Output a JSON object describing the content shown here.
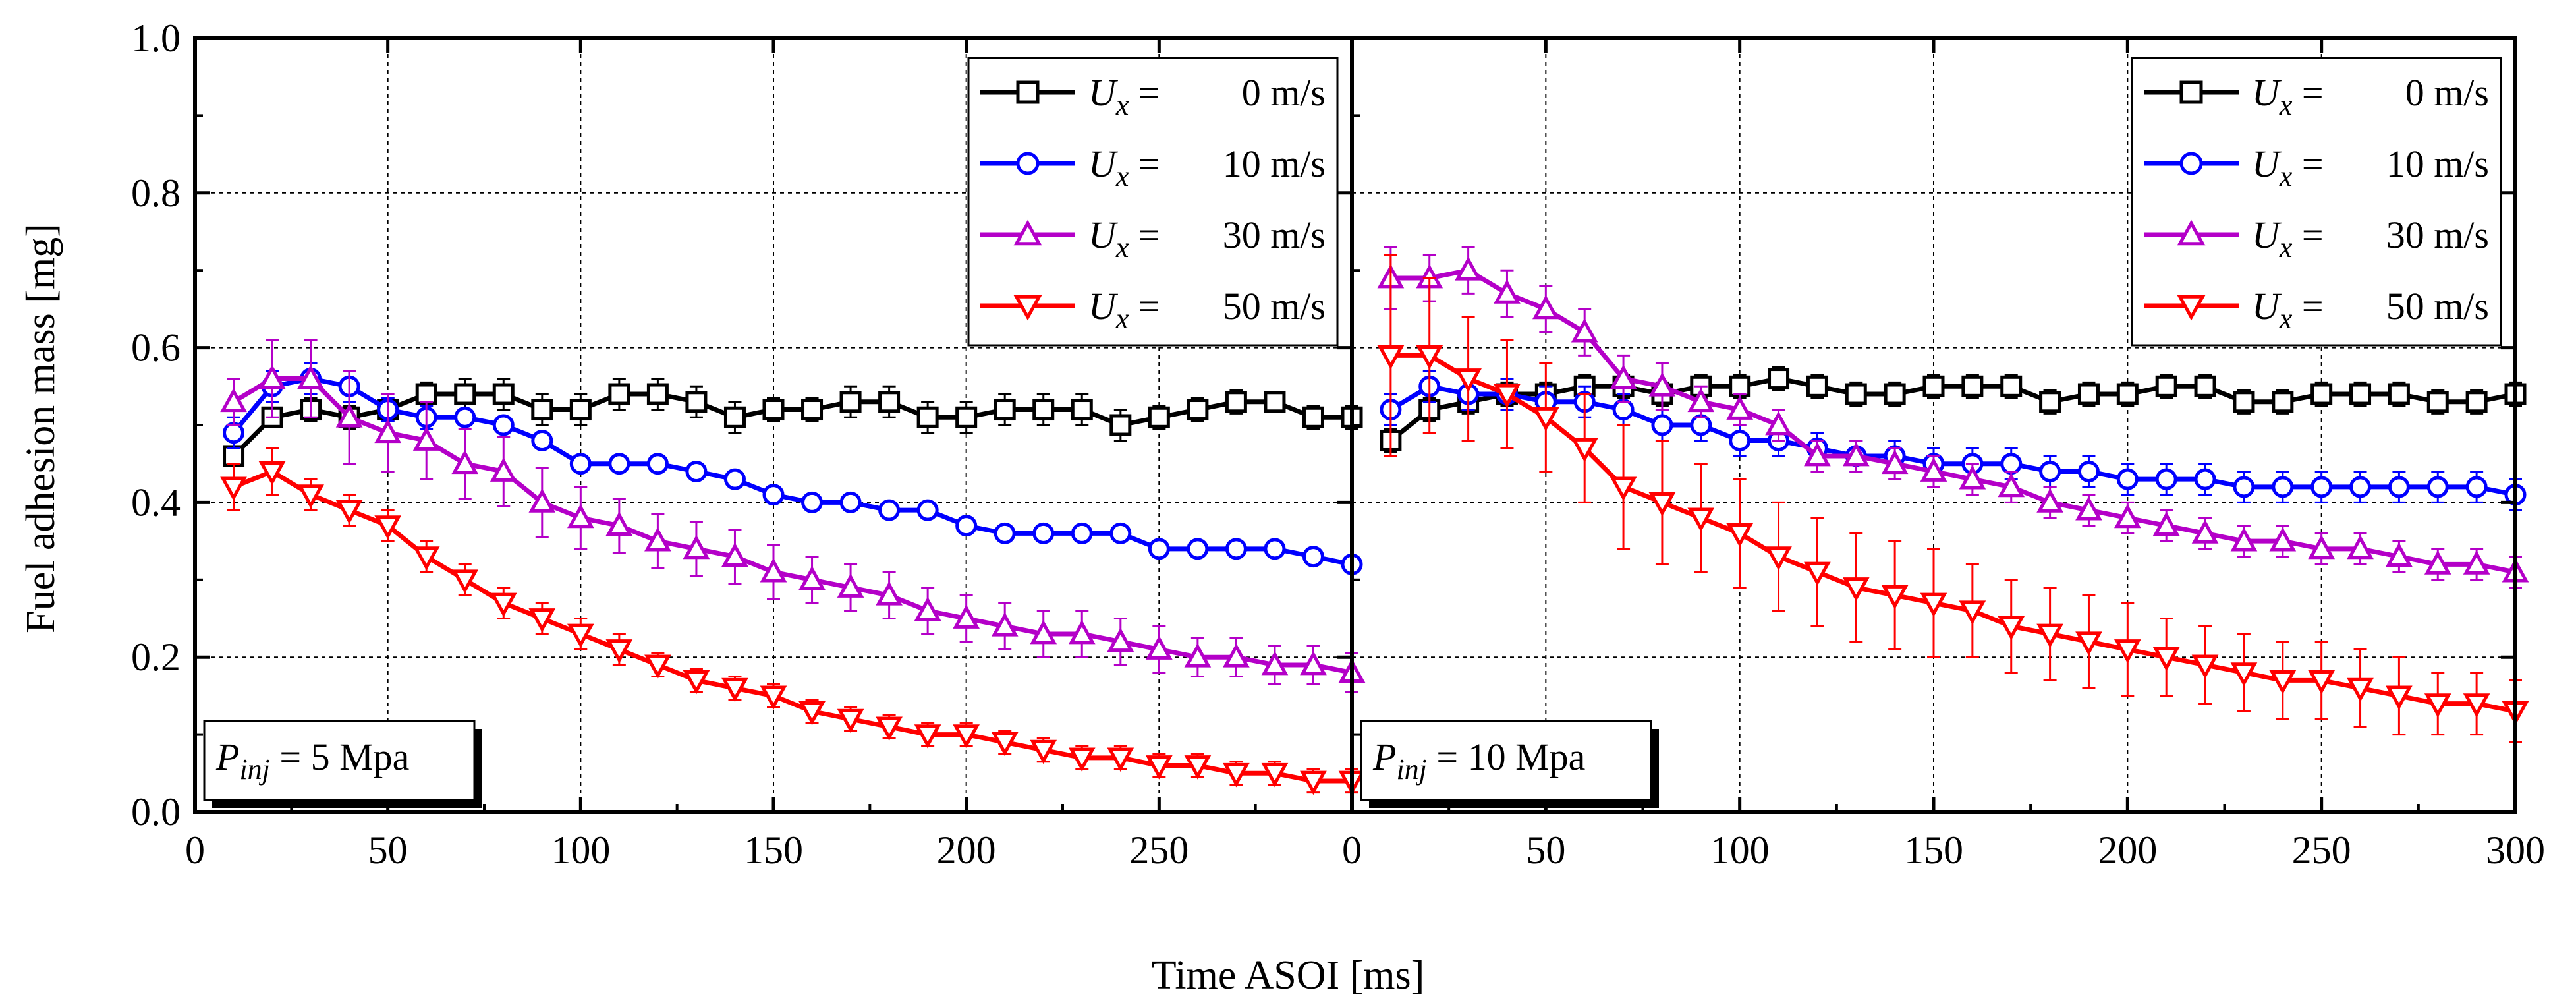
{
  "colors": {
    "black": "#000000",
    "blue": "#0000ff",
    "purple": "#b400c8",
    "red": "#ff0000"
  },
  "chart_data": [
    {
      "type": "line",
      "title": "",
      "annotation_parts": {
        "sym": "P",
        "sub": "inj",
        "rest": " = 5 Mpa"
      },
      "xlabel": "Time ASOI [ms]",
      "ylabel": "Fuel adhesion mass [mg]",
      "xlim": [
        0,
        300
      ],
      "ylim": [
        0.0,
        1.0
      ],
      "grid": true,
      "legend_position": "top-right",
      "x_ticks": [
        "0",
        "50",
        "100",
        "150",
        "200",
        "250"
      ],
      "y_ticks": [
        "0.0",
        "0.2",
        "0.4",
        "0.6",
        "0.8",
        "1.0"
      ],
      "x": [
        10,
        20,
        30,
        40,
        50,
        60,
        70,
        80,
        90,
        100,
        110,
        120,
        130,
        140,
        150,
        160,
        170,
        180,
        190,
        200,
        210,
        220,
        230,
        240,
        250,
        260,
        270,
        280,
        290,
        300
      ],
      "series": [
        {
          "name": "Ux = 0 m/s",
          "speed": "0 m/s",
          "color": "#000000",
          "marker": "square",
          "values": [
            0.46,
            0.51,
            0.52,
            0.51,
            0.52,
            0.54,
            0.54,
            0.54,
            0.52,
            0.52,
            0.54,
            0.54,
            0.53,
            0.51,
            0.52,
            0.52,
            0.53,
            0.53,
            0.51,
            0.51,
            0.52,
            0.52,
            0.52,
            0.5,
            0.51,
            0.52,
            0.53,
            0.53,
            0.51,
            0.51
          ],
          "errors": [
            0.01,
            0.01,
            0.015,
            0.015,
            0.015,
            0.015,
            0.02,
            0.02,
            0.02,
            0.02,
            0.02,
            0.02,
            0.02,
            0.02,
            0.015,
            0.015,
            0.02,
            0.02,
            0.02,
            0.02,
            0.02,
            0.02,
            0.02,
            0.02,
            0.015,
            0.015,
            0.015,
            0.01,
            0.015,
            0.015
          ]
        },
        {
          "name": "Ux = 10 m/s",
          "speed": "10 m/s",
          "color": "#0000ff",
          "marker": "circle",
          "values": [
            0.49,
            0.55,
            0.56,
            0.55,
            0.52,
            0.51,
            0.51,
            0.5,
            0.48,
            0.45,
            0.45,
            0.45,
            0.44,
            0.43,
            0.41,
            0.4,
            0.4,
            0.39,
            0.39,
            0.37,
            0.36,
            0.36,
            0.36,
            0.36,
            0.34,
            0.34,
            0.34,
            0.34,
            0.33,
            0.32
          ],
          "errors": [
            0.02,
            0.02,
            0.02,
            0.02,
            0.015,
            0.015,
            0.01,
            0.01,
            0.01,
            0.01,
            0.01,
            0.01,
            0.01,
            0.01,
            0.01,
            0.01,
            0.01,
            0.01,
            0.01,
            0.01,
            0.01,
            0.01,
            0.01,
            0.01,
            0.01,
            0.01,
            0.01,
            0.01,
            0.01,
            0.01
          ]
        },
        {
          "name": "Ux = 30 m/s",
          "speed": "30 m/s",
          "color": "#b400c8",
          "marker": "triangle-up",
          "values": [
            0.53,
            0.56,
            0.56,
            0.51,
            0.49,
            0.48,
            0.45,
            0.44,
            0.4,
            0.38,
            0.37,
            0.35,
            0.34,
            0.33,
            0.31,
            0.3,
            0.29,
            0.28,
            0.26,
            0.25,
            0.24,
            0.23,
            0.23,
            0.22,
            0.21,
            0.2,
            0.2,
            0.19,
            0.19,
            0.18
          ],
          "errors": [
            0.03,
            0.05,
            0.05,
            0.06,
            0.05,
            0.05,
            0.045,
            0.045,
            0.045,
            0.04,
            0.035,
            0.035,
            0.035,
            0.035,
            0.035,
            0.03,
            0.03,
            0.03,
            0.03,
            0.03,
            0.03,
            0.03,
            0.03,
            0.03,
            0.03,
            0.025,
            0.025,
            0.025,
            0.025,
            0.025
          ]
        },
        {
          "name": "Ux = 50 m/s",
          "speed": "50 m/s",
          "color": "#ff0000",
          "marker": "triangle-down",
          "values": [
            0.42,
            0.44,
            0.41,
            0.39,
            0.37,
            0.33,
            0.3,
            0.27,
            0.25,
            0.23,
            0.21,
            0.19,
            0.17,
            0.16,
            0.15,
            0.13,
            0.12,
            0.11,
            0.1,
            0.1,
            0.09,
            0.08,
            0.07,
            0.07,
            0.06,
            0.06,
            0.05,
            0.05,
            0.04,
            0.04
          ],
          "errors": [
            0.03,
            0.03,
            0.02,
            0.02,
            0.02,
            0.02,
            0.02,
            0.02,
            0.02,
            0.02,
            0.02,
            0.015,
            0.015,
            0.015,
            0.015,
            0.015,
            0.015,
            0.015,
            0.015,
            0.015,
            0.015,
            0.015,
            0.015,
            0.015,
            0.015,
            0.015,
            0.015,
            0.015,
            0.015,
            0.015
          ]
        }
      ]
    },
    {
      "type": "line",
      "title": "",
      "annotation_parts": {
        "sym": "P",
        "sub": "inj",
        "rest": " = 10 Mpa"
      },
      "xlabel": "Time ASOI [ms]",
      "ylabel": "Fuel adhesion mass [mg]",
      "xlim": [
        0,
        300
      ],
      "ylim": [
        0.0,
        1.0
      ],
      "grid": true,
      "legend_position": "top-right",
      "x_ticks": [
        "0",
        "50",
        "100",
        "150",
        "200",
        "250",
        "300"
      ],
      "x": [
        10,
        20,
        30,
        40,
        50,
        60,
        70,
        80,
        90,
        100,
        110,
        120,
        130,
        140,
        150,
        160,
        170,
        180,
        190,
        200,
        210,
        220,
        230,
        240,
        250,
        260,
        270,
        280,
        290,
        300
      ],
      "series": [
        {
          "name": "Ux = 0 m/s",
          "speed": "0 m/s",
          "color": "#000000",
          "marker": "square",
          "values": [
            0.48,
            0.52,
            0.53,
            0.54,
            0.54,
            0.55,
            0.55,
            0.54,
            0.55,
            0.55,
            0.56,
            0.55,
            0.54,
            0.54,
            0.55,
            0.55,
            0.55,
            0.53,
            0.54,
            0.54,
            0.55,
            0.55,
            0.53,
            0.53,
            0.54,
            0.54,
            0.54,
            0.53,
            0.53,
            0.54
          ],
          "errors": [
            0.015,
            0.015,
            0.015,
            0.015,
            0.015,
            0.015,
            0.015,
            0.015,
            0.015,
            0.015,
            0.015,
            0.015,
            0.015,
            0.015,
            0.015,
            0.015,
            0.015,
            0.015,
            0.015,
            0.015,
            0.015,
            0.015,
            0.015,
            0.015,
            0.015,
            0.015,
            0.015,
            0.015,
            0.015,
            0.015
          ]
        },
        {
          "name": "Ux = 10 m/s",
          "speed": "10 m/s",
          "color": "#0000ff",
          "marker": "circle",
          "values": [
            0.52,
            0.55,
            0.54,
            0.54,
            0.53,
            0.53,
            0.52,
            0.5,
            0.5,
            0.48,
            0.48,
            0.47,
            0.46,
            0.46,
            0.45,
            0.45,
            0.45,
            0.44,
            0.44,
            0.43,
            0.43,
            0.43,
            0.42,
            0.42,
            0.42,
            0.42,
            0.42,
            0.42,
            0.42,
            0.41
          ],
          "errors": [
            0.02,
            0.02,
            0.02,
            0.02,
            0.02,
            0.02,
            0.02,
            0.02,
            0.02,
            0.02,
            0.02,
            0.02,
            0.02,
            0.02,
            0.02,
            0.02,
            0.02,
            0.02,
            0.02,
            0.02,
            0.02,
            0.02,
            0.02,
            0.02,
            0.02,
            0.02,
            0.02,
            0.02,
            0.02,
            0.02
          ]
        },
        {
          "name": "Ux = 30 m/s",
          "speed": "30 m/s",
          "color": "#b400c8",
          "marker": "triangle-up",
          "values": [
            0.69,
            0.69,
            0.7,
            0.67,
            0.65,
            0.62,
            0.56,
            0.55,
            0.53,
            0.52,
            0.5,
            0.46,
            0.46,
            0.45,
            0.44,
            0.43,
            0.42,
            0.4,
            0.39,
            0.38,
            0.37,
            0.36,
            0.35,
            0.35,
            0.34,
            0.34,
            0.33,
            0.32,
            0.32,
            0.31
          ],
          "errors": [
            0.04,
            0.03,
            0.03,
            0.03,
            0.03,
            0.03,
            0.03,
            0.03,
            0.02,
            0.02,
            0.02,
            0.02,
            0.02,
            0.02,
            0.02,
            0.02,
            0.02,
            0.02,
            0.02,
            0.02,
            0.02,
            0.02,
            0.02,
            0.02,
            0.02,
            0.02,
            0.02,
            0.02,
            0.02,
            0.02
          ]
        },
        {
          "name": "Ux = 50 m/s",
          "speed": "50 m/s",
          "color": "#ff0000",
          "marker": "triangle-down",
          "values": [
            0.59,
            0.59,
            0.56,
            0.54,
            0.51,
            0.47,
            0.42,
            0.4,
            0.38,
            0.36,
            0.33,
            0.31,
            0.29,
            0.28,
            0.27,
            0.26,
            0.24,
            0.23,
            0.22,
            0.21,
            0.2,
            0.19,
            0.18,
            0.17,
            0.17,
            0.16,
            0.15,
            0.14,
            0.14,
            0.13
          ],
          "errors": [
            0.13,
            0.1,
            0.08,
            0.07,
            0.07,
            0.07,
            0.08,
            0.08,
            0.07,
            0.07,
            0.07,
            0.07,
            0.07,
            0.07,
            0.07,
            0.06,
            0.06,
            0.06,
            0.06,
            0.06,
            0.05,
            0.05,
            0.05,
            0.05,
            0.05,
            0.05,
            0.05,
            0.04,
            0.04,
            0.04
          ]
        }
      ]
    }
  ]
}
